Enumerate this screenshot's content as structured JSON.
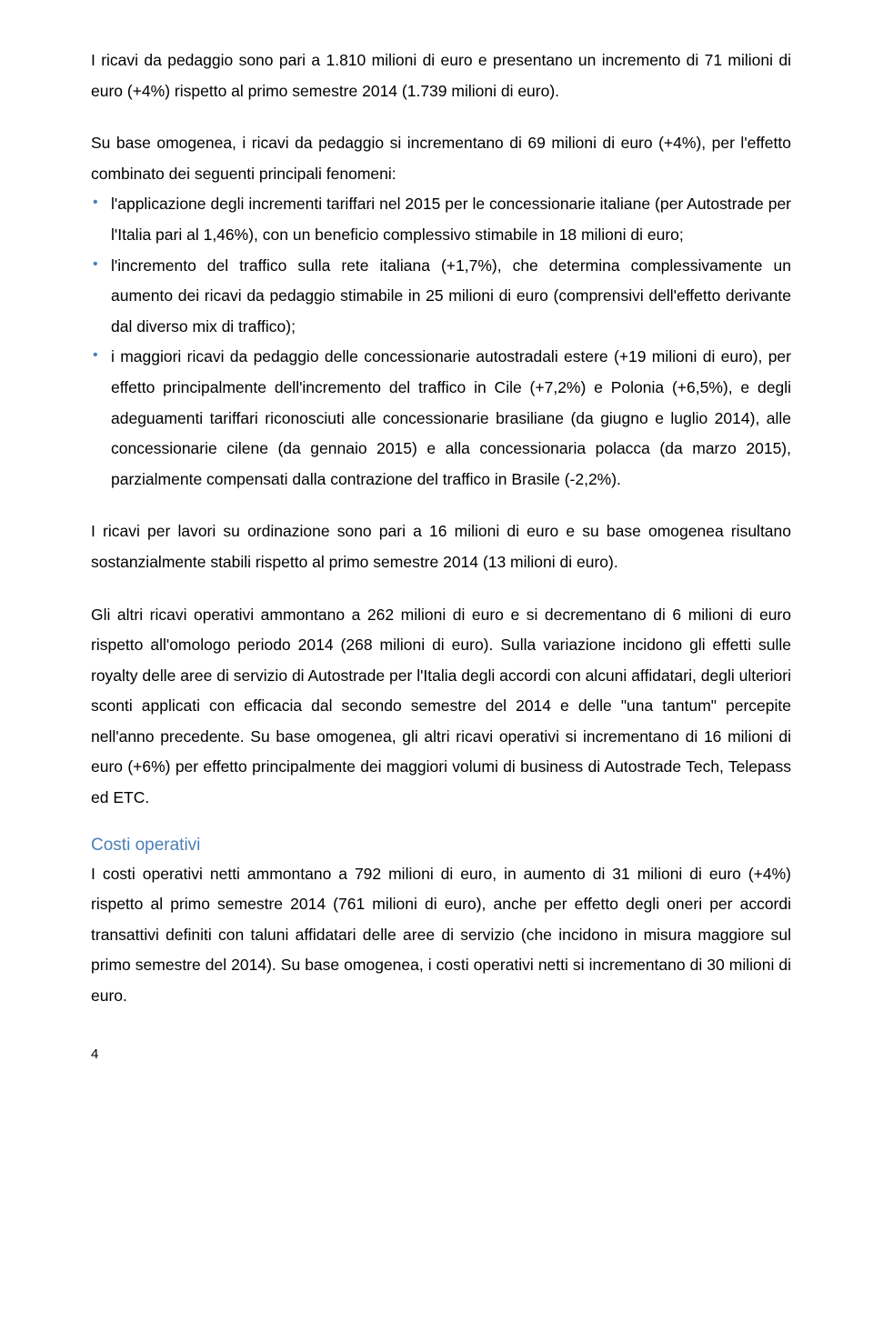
{
  "p1": "I ricavi da pedaggio sono pari a 1.810 milioni di euro e presentano un incremento di 71 milioni di euro (+4%) rispetto al primo semestre 2014 (1.739 milioni di euro).",
  "p2": "Su base omogenea, i ricavi da pedaggio si incrementano di 69 milioni di euro (+4%), per l'effetto combinato dei seguenti principali fenomeni:",
  "bullets": [
    "l'applicazione degli incrementi tariffari nel 2015 per le concessionarie italiane (per Autostrade per l'Italia pari al 1,46%), con un beneficio complessivo stimabile in 18 milioni di euro;",
    "l'incremento del traffico sulla rete italiana (+1,7%), che determina complessivamente un aumento dei ricavi da pedaggio stimabile in 25 milioni di euro (comprensivi dell'effetto derivante dal diverso mix di traffico);",
    "i maggiori ricavi da pedaggio delle concessionarie autostradali estere (+19 milioni di euro), per effetto principalmente dell'incremento del traffico in Cile (+7,2%) e Polonia (+6,5%), e degli adeguamenti tariffari riconosciuti alle concessionarie brasiliane (da giugno e luglio 2014), alle concessionarie cilene (da gennaio 2015) e alla concessionaria polacca (da marzo 2015), parzialmente compensati dalla contrazione del traffico in Brasile (-2,2%)."
  ],
  "p3": "I ricavi per lavori su ordinazione sono pari a 16 milioni di euro e su base omogenea risultano sostanzialmente stabili rispetto al primo semestre 2014 (13 milioni di euro).",
  "p4": "Gli altri ricavi operativi ammontano a 262 milioni di euro e si decrementano di 6 milioni di euro rispetto all'omologo periodo 2014 (268 milioni di euro). Sulla variazione incidono gli effetti sulle royalty delle aree di servizio di Autostrade per l'Italia degli accordi con alcuni affidatari, degli ulteriori sconti applicati con efficacia dal secondo semestre del 2014 e delle \"una tantum\" percepite nell'anno precedente. Su base omogenea, gli altri ricavi operativi si incrementano di 16 milioni di euro (+6%) per effetto principalmente dei maggiori volumi di business di Autostrade Tech, Telepass ed ETC.",
  "heading": "Costi operativi",
  "p5": "I costi operativi netti ammontano a 792 milioni di euro, in aumento di 31 milioni di euro (+4%) rispetto al primo semestre 2014 (761 milioni di euro), anche per effetto degli oneri per accordi transattivi definiti con taluni affidatari delle aree di servizio (che incidono in misura maggiore sul primo semestre del 2014). Su base omogenea, i costi operativi netti si incrementano di 30 milioni di euro.",
  "pageNumber": "4"
}
